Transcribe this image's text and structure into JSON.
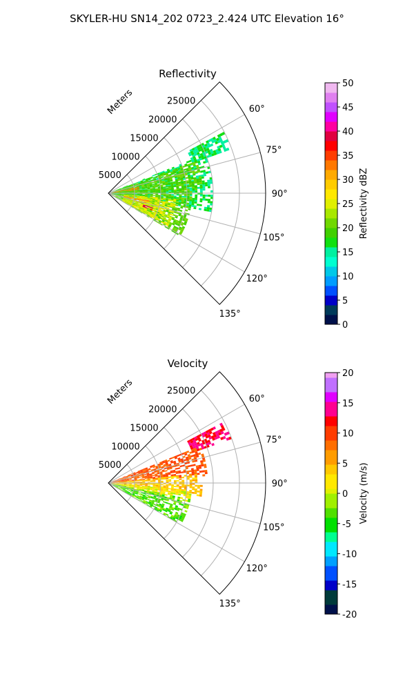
{
  "figure_title": "SKYLER-HU  SN14_202  0723_2.424 UTC Elevation 16°",
  "chart_data": [
    {
      "type": "heatmap",
      "projection": "polar-sector",
      "title": "Reflectivity",
      "radial_label": "Meters",
      "radial_ticks": [
        5000,
        10000,
        15000,
        20000,
        25000
      ],
      "radial_tick_labels": [
        "5000",
        "10000",
        "15000",
        "20000",
        "25000"
      ],
      "radial_range": [
        0,
        30000
      ],
      "angle_range": [
        45,
        135
      ],
      "angle_ticks": [
        60,
        75,
        90,
        105,
        120,
        135
      ],
      "angle_tick_labels": [
        "60°",
        "75°",
        "90°",
        "105°",
        "120°",
        "135°"
      ],
      "grid": true,
      "colorbar": {
        "label": "Reflectivity dBZ",
        "range": [
          0,
          50
        ],
        "ticks": [
          0,
          5,
          10,
          15,
          20,
          25,
          30,
          35,
          40,
          45,
          50
        ],
        "tick_labels": [
          "0",
          "5",
          "10",
          "15",
          "20",
          "25",
          "30",
          "35",
          "40",
          "45",
          "50"
        ],
        "colormap": "NWSRef"
      },
      "echo_regions": [
        {
          "az": [
            62,
            70
          ],
          "r": [
            17000,
            25000
          ],
          "value": 16
        },
        {
          "az": [
            68,
            100
          ],
          "r": [
            0,
            20000
          ],
          "value": 16
        },
        {
          "az": [
            70,
            88
          ],
          "r": [
            0,
            18000
          ],
          "value": 20
        },
        {
          "az": [
            85,
            120
          ],
          "r": [
            0,
            16000
          ],
          "value": 20
        },
        {
          "az": [
            95,
            118
          ],
          "r": [
            3000,
            13000
          ],
          "value": 25
        },
        {
          "az": [
            78,
            84
          ],
          "r": [
            0,
            6000
          ],
          "value": 32
        },
        {
          "az": [
            100,
            106
          ],
          "r": [
            3000,
            8000
          ],
          "value": 32
        },
        {
          "az": [
            108,
            111
          ],
          "r": [
            7000,
            9000
          ],
          "value": 38
        }
      ]
    },
    {
      "type": "heatmap",
      "projection": "polar-sector",
      "title": "Velocity",
      "radial_label": "Meters",
      "radial_ticks": [
        5000,
        10000,
        15000,
        20000,
        25000
      ],
      "radial_tick_labels": [
        "5000",
        "10000",
        "15000",
        "20000",
        "25000"
      ],
      "radial_range": [
        0,
        30000
      ],
      "angle_range": [
        45,
        135
      ],
      "angle_ticks": [
        60,
        75,
        90,
        105,
        120,
        135
      ],
      "angle_tick_labels": [
        "60°",
        "75°",
        "90°",
        "105°",
        "120°",
        "135°"
      ],
      "grid": true,
      "colorbar": {
        "label": "Velocity (m/s)",
        "range": [
          -20,
          20
        ],
        "ticks": [
          -20,
          -15,
          -10,
          -5,
          0,
          5,
          10,
          15,
          20
        ],
        "tick_labels": [
          "-20",
          "-15",
          "-10",
          "-5",
          "0",
          "5",
          "10",
          "15",
          "20"
        ],
        "colormap": "NWSVel"
      },
      "echo_regions": [
        {
          "az": [
            62,
            70
          ],
          "r": [
            17000,
            25000
          ],
          "value": 13
        },
        {
          "az": [
            68,
            85
          ],
          "r": [
            0,
            19000
          ],
          "value": 9
        },
        {
          "az": [
            84,
            98
          ],
          "r": [
            0,
            18000
          ],
          "value": 4
        },
        {
          "az": [
            95,
            103
          ],
          "r": [
            0,
            16000
          ],
          "value": 1
        },
        {
          "az": [
            101,
            120
          ],
          "r": [
            0,
            16000
          ],
          "value": -3
        }
      ]
    }
  ]
}
